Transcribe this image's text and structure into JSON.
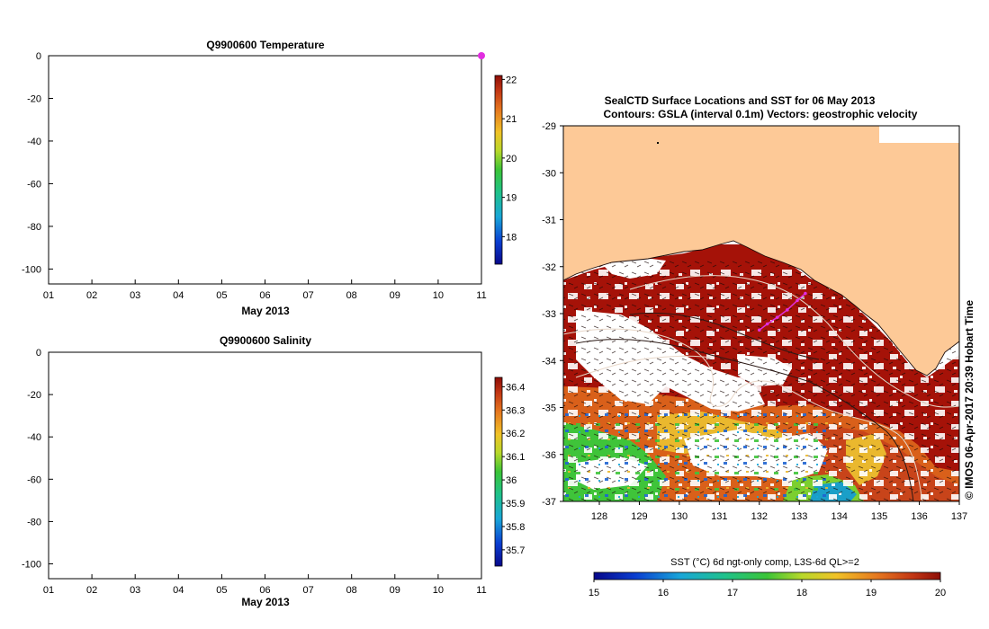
{
  "chart_data": [
    {
      "type": "scatter",
      "title": "Q9900600  Temperature",
      "xlabel": "May 2013",
      "ylabel": "",
      "x_ticks": [
        "01",
        "02",
        "03",
        "04",
        "05",
        "06",
        "07",
        "08",
        "09",
        "10",
        "11"
      ],
      "y_ticks": [
        "0",
        "-20",
        "-40",
        "-60",
        "-80",
        "-100"
      ],
      "xlim": [
        1,
        11
      ],
      "ylim": [
        -107,
        0
      ],
      "points": [
        {
          "x": 11,
          "y": 0,
          "value": 22
        }
      ],
      "colorbar": {
        "ticks": [
          "22",
          "21",
          "20",
          "19",
          "18"
        ],
        "range": [
          17.3,
          22.1
        ]
      }
    },
    {
      "type": "scatter",
      "title": "Q9900600  Salinity",
      "xlabel": "May 2013",
      "ylabel": "",
      "x_ticks": [
        "01",
        "02",
        "03",
        "04",
        "05",
        "06",
        "07",
        "08",
        "09",
        "10",
        "11"
      ],
      "y_ticks": [
        "0",
        "-20",
        "-40",
        "-60",
        "-80",
        "-100"
      ],
      "xlim": [
        1,
        11
      ],
      "ylim": [
        -107,
        0
      ],
      "points": [],
      "colorbar": {
        "ticks": [
          "36.4",
          "36.3",
          "36.2",
          "36.1",
          "36",
          "35.9",
          "35.8",
          "35.7"
        ],
        "range": [
          35.63,
          36.44
        ]
      }
    },
    {
      "type": "heatmap",
      "title_line1": "SealCTD Surface Locations and SST for 06 May 2013",
      "title_line2": "Contours: GSLA (interval 0.1m) Vectors: geostrophic velocity",
      "x_ticks": [
        "128",
        "129",
        "130",
        "131",
        "132",
        "133",
        "134",
        "135",
        "136",
        "137"
      ],
      "y_ticks": [
        "-29",
        "-30",
        "-31",
        "-32",
        "-33",
        "-34",
        "-35",
        "-36",
        "-37"
      ],
      "xlim": [
        127.1,
        137
      ],
      "ylim": [
        -37,
        -29
      ],
      "colorbar_label": "SST (°C) 6d ngt-only comp, L3S-6d QL>=2",
      "colorbar_ticks": [
        "15",
        "16",
        "17",
        "18",
        "19",
        "20"
      ],
      "colorbar_range": [
        15,
        20
      ],
      "track": [
        [
          132.0,
          -33.35
        ],
        [
          132.2,
          -33.22
        ],
        [
          132.45,
          -33.08
        ],
        [
          132.7,
          -32.92
        ],
        [
          132.95,
          -32.72
        ],
        [
          133.15,
          -32.57
        ]
      ],
      "watermark": "© IMOS 06-Apr-2017 20:39 Hobart Time"
    }
  ],
  "colors": {
    "land": "#fdc997",
    "warm": "#a51208",
    "orange": "#d9601a",
    "yellow": "#eab82e",
    "green": "#3fc43a",
    "blue": "#1e63d1",
    "track": "#e12ee0",
    "contour": "#e8d7c8",
    "contour_dark": "#2a1814"
  }
}
